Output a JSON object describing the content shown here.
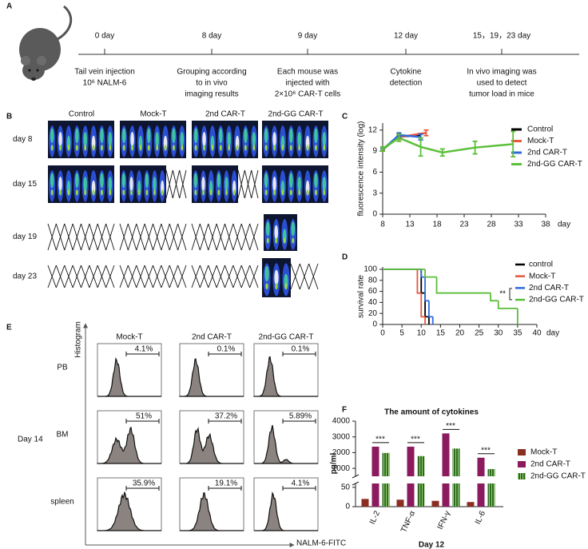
{
  "panel_labels": [
    "A",
    "B",
    "C",
    "D",
    "E",
    "F"
  ],
  "timeline": [
    {
      "day": "0 day",
      "text": [
        "Tail vein injection",
        "10⁶ NALM-6"
      ]
    },
    {
      "day": "8 day",
      "text": [
        "Grouping according",
        "to in vivo",
        "imaging results"
      ]
    },
    {
      "day": "9 day",
      "text": [
        "Each mouse was",
        "injected with",
        "2×10⁶ CAR-T cells"
      ]
    },
    {
      "day": "12 day",
      "text": [
        "Cytokine",
        "detection"
      ]
    },
    {
      "day": "15，19，23 day",
      "text": [
        "In vivo imaging was",
        "used to detect",
        "tumor load in mice"
      ]
    }
  ],
  "imaging": {
    "columns": [
      "Control",
      "Mock-T",
      "2nd CAR-T",
      "2nd-GG CAR-T"
    ],
    "rows": [
      "day 8",
      "day 15",
      "day 19",
      "day 23"
    ]
  },
  "flow": {
    "columns": [
      "Mock-T",
      "2nd CAR-T",
      "2nd-GG CAR-T"
    ],
    "rows": [
      "PB",
      "BM",
      "spleen"
    ],
    "percentages": [
      [
        "4.1%",
        "0.1%",
        "0.1%"
      ],
      [
        "51%",
        "37.2%",
        "5.89%"
      ],
      [
        "35.9%",
        "19.1%",
        "4.1%"
      ]
    ],
    "group": "Day 14",
    "y_label": "Histogram",
    "x_label": "NALM-6-FITC"
  },
  "chart_data": [
    {
      "type": "line",
      "y_label": "fluorescence intensity (log)",
      "x_unit_label": "day",
      "xlim": [
        8,
        38
      ],
      "xticks": [
        8,
        13,
        18,
        23,
        28,
        33,
        38
      ],
      "ylim": [
        0,
        13
      ],
      "yticks": [
        0,
        3,
        6,
        9,
        12
      ],
      "series": [
        {
          "name": "Control",
          "color": "#000000",
          "x": [
            8,
            11,
            15
          ],
          "values": [
            9.2,
            11.1,
            11.2
          ],
          "errors": [
            0.2,
            0.4,
            0.3
          ]
        },
        {
          "name": "Mock-T",
          "color": "#e8583f",
          "x": [
            8,
            11,
            16
          ],
          "values": [
            9.3,
            11.0,
            11.6
          ],
          "errors": [
            0.2,
            0.3,
            0.4
          ]
        },
        {
          "name": "2nd CAR-T",
          "color": "#2f6bd9",
          "x": [
            8,
            11,
            15
          ],
          "values": [
            9.2,
            11.3,
            11.0
          ],
          "errors": [
            0.2,
            0.3,
            0.4
          ]
        },
        {
          "name": "2nd-GG CAR-T",
          "color": "#5cbf3a",
          "x": [
            8,
            11,
            15,
            19,
            25,
            32
          ],
          "values": [
            9.3,
            10.9,
            9.6,
            8.8,
            9.5,
            10.0
          ],
          "errors": [
            0.3,
            0.5,
            1.3,
            0.5,
            0.9,
            1.8
          ]
        }
      ]
    },
    {
      "type": "step",
      "y_label": "survival rate",
      "x_unit_label": "day",
      "annotation": "**",
      "xlim": [
        0,
        40
      ],
      "xticks": [
        0,
        5,
        10,
        15,
        20,
        25,
        30,
        35,
        40
      ],
      "ylim": [
        0,
        100
      ],
      "yticks": [
        0,
        20,
        40,
        60,
        80,
        100
      ],
      "series": [
        {
          "name": "control",
          "color": "#000000",
          "x": [
            0,
            10,
            11,
            12
          ],
          "values": [
            100,
            57,
            14,
            0
          ]
        },
        {
          "name": "Mock-T",
          "color": "#e8583f",
          "x": [
            0,
            9,
            10,
            11
          ],
          "values": [
            100,
            57,
            14,
            0
          ]
        },
        {
          "name": "2nd CAR-T",
          "color": "#2f6bd9",
          "x": [
            0,
            10,
            11,
            12,
            13
          ],
          "values": [
            100,
            86,
            43,
            14,
            0
          ]
        },
        {
          "name": "2nd-GG CAR-T",
          "color": "#5cbf3a",
          "x": [
            0,
            11,
            14,
            28,
            30,
            35
          ],
          "values": [
            100,
            86,
            57,
            43,
            29,
            0
          ]
        }
      ]
    },
    {
      "type": "bar",
      "title": "The amount of cytokines",
      "y_label": "pg/ml",
      "x_label": "Day 12",
      "categories": [
        "IL-2",
        "TNF-α",
        "IFN-γ",
        "IL-6"
      ],
      "ylim": [
        500,
        4000
      ],
      "yticks": [
        1000,
        2000,
        3000,
        4000
      ],
      "ylim_lower": [
        0,
        60
      ],
      "yticks_lower": [
        0,
        50
      ],
      "significance": [
        "***",
        "***",
        "***",
        "***"
      ],
      "series": [
        {
          "name": "Mock-T",
          "color": "#8b2e22",
          "values": [
            20,
            18,
            15,
            12
          ]
        },
        {
          "name": "2nd CAR-T",
          "color": "#8b1a5e",
          "values": [
            2380,
            2380,
            3220,
            1680
          ]
        },
        {
          "name": "2nd-GG CAR-T",
          "color": "#2e6b1e",
          "hatch": true,
          "values": [
            1980,
            1780,
            2260,
            960
          ]
        }
      ]
    }
  ]
}
